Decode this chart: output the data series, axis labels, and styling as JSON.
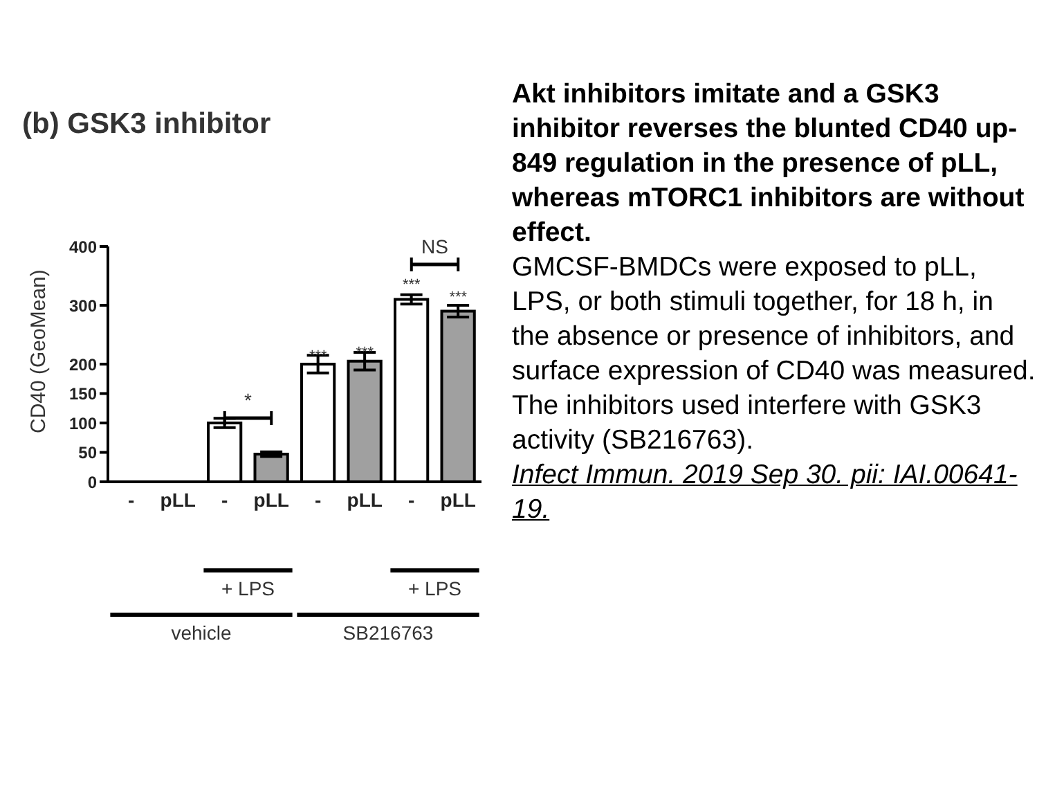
{
  "chart_data": {
    "type": "bar",
    "title": "(b) GSK3 inhibitor",
    "ylabel": "CD40 (GeoMean)",
    "categories": [
      "-",
      "pLL",
      "-",
      "pLL",
      "-",
      "pLL",
      "-",
      "pLL"
    ],
    "values": [
      0,
      0,
      100,
      47,
      200,
      205,
      310,
      290
    ],
    "colors": [
      "#ffffff",
      "#a0a0a0",
      "#ffffff",
      "#a0a0a0",
      "#ffffff",
      "#a0a0a0",
      "#ffffff",
      "#a0a0a0"
    ],
    "errors": [
      null,
      null,
      8,
      4,
      15,
      15,
      8,
      10
    ],
    "value_labels": [
      null,
      null,
      null,
      null,
      "***",
      "***",
      "***",
      "***"
    ],
    "ylim": [
      0,
      400
    ],
    "yticks": [
      0,
      50,
      100,
      150,
      200,
      300,
      400
    ],
    "grid": false,
    "legend": false,
    "annotations": [
      "*",
      "NS",
      "+ LPS",
      "+ LPS",
      "vehicle",
      "SB216763",
      "Akt inhibitors imitate and a GSK3 inhibitor reverses the blunted CD40 up- 849 regulation in the presence of pLL, whereas mTORC1 inhibitors are without effect.",
      "GMCSF-BMDCs were exposed to pLL, LPS, or both stimuli together, for 18 h, in the absence or presence of inhibitors, and surface expression of CD40 was measured. The inhibitors used interfere with GSK3 activity (SB216763).",
      "Infect Immun. 2019 Sep 30. pii: IAI.00641-19."
    ]
  }
}
